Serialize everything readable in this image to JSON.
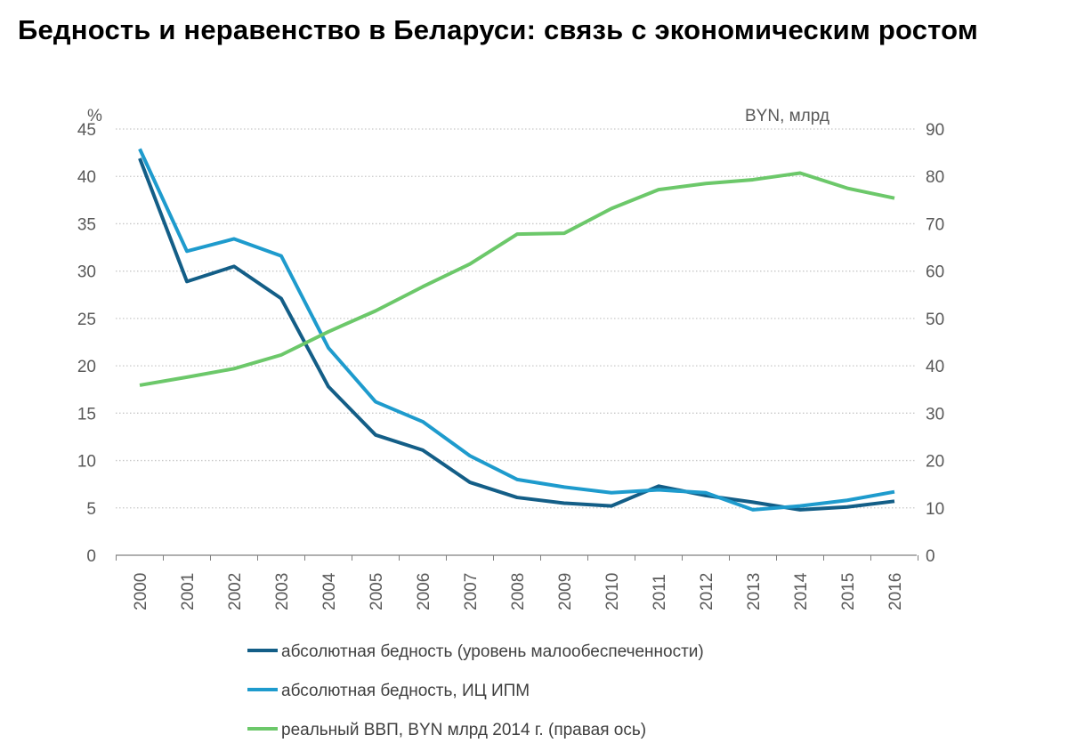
{
  "title": "Бедность и неравенство в Беларуси: связь с  экономическим ростом",
  "chart_data": {
    "type": "line",
    "title": "Бедность и неравенство в Беларуси: связь с  экономическим ростом",
    "x": [
      "2000",
      "2001",
      "2002",
      "2003",
      "2004",
      "2005",
      "2006",
      "2007",
      "2008",
      "2009",
      "2010",
      "2011",
      "2012",
      "2013",
      "2014",
      "2015",
      "2016"
    ],
    "y_left": {
      "label": "%",
      "range": [
        0,
        45
      ],
      "ticks": [
        0,
        5,
        10,
        15,
        20,
        25,
        30,
        35,
        40,
        45
      ]
    },
    "y_right": {
      "label": "BYN, млрд",
      "range": [
        0,
        90
      ],
      "ticks": [
        0,
        10,
        20,
        30,
        40,
        50,
        60,
        70,
        80,
        90
      ]
    },
    "grid": true,
    "legend_position": "bottom",
    "series": [
      {
        "name": "абсолютная бедность (уровень малообеспеченности)",
        "axis": "left",
        "color": "#135e87",
        "values": [
          41.9,
          28.9,
          30.5,
          27.1,
          17.8,
          12.7,
          11.1,
          7.7,
          6.1,
          5.5,
          5.2,
          7.3,
          6.3,
          5.6,
          4.8,
          5.1,
          5.7
        ]
      },
      {
        "name": "абсолютная бедность, ИЦ ИПМ",
        "axis": "left",
        "color": "#1e9bcd",
        "values": [
          42.9,
          32.1,
          33.4,
          31.6,
          21.9,
          16.2,
          14.1,
          10.5,
          8.0,
          7.2,
          6.6,
          6.9,
          6.6,
          4.8,
          5.2,
          5.8,
          6.7
        ]
      },
      {
        "name": "реальный ВВП, BYN млрд 2014 г. (правая ось)",
        "axis": "right",
        "color": "#6cc86a",
        "values": [
          35.9,
          37.6,
          39.4,
          42.3,
          47.2,
          51.6,
          56.7,
          61.5,
          67.8,
          68.0,
          73.2,
          77.2,
          78.5,
          79.3,
          80.7,
          77.5,
          75.4
        ]
      }
    ]
  }
}
